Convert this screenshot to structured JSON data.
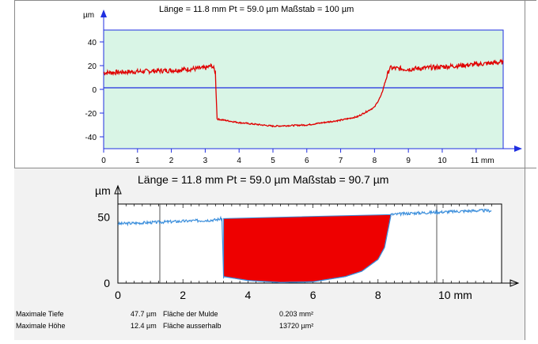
{
  "top_chart": {
    "header": "Länge = 11.8 mm  Pt = 59.0 µm  Maßstab = 100 µm",
    "y_unit": "µm",
    "x_unit": "mm",
    "x_ticks": [
      "0",
      "1",
      "2",
      "3",
      "4",
      "5",
      "6",
      "7",
      "8",
      "9",
      "10",
      "11 mm"
    ],
    "y_ticks": [
      "40",
      "20",
      "0",
      "-20",
      "-40"
    ],
    "colors": {
      "background": "#d9f5e6",
      "profile": "#e00000",
      "axis": "#1f2fe0",
      "frame": "#1f2fe0"
    }
  },
  "bottom_chart": {
    "header": "Länge = 11.8 mm  Pt = 59.0 µm  Maßstab = 90.7 µm",
    "y_unit": "µm",
    "x_ticks": [
      "0",
      "2",
      "4",
      "6",
      "8",
      "10 mm"
    ],
    "y_ticks": [
      "50",
      "0"
    ],
    "colors": {
      "profile": "#3c8fdc",
      "fill": "#ee0000"
    }
  },
  "chart_data": [
    {
      "type": "line",
      "title": "Länge = 11.8 mm  Pt = 59.0 µm  Maßstab = 100 µm",
      "xlabel": "mm",
      "ylabel": "µm",
      "xlim": [
        0,
        11.8
      ],
      "ylim": [
        -50,
        50
      ],
      "grid": false,
      "series": [
        {
          "x": [
            0,
            1,
            2,
            3,
            3.2,
            3.3,
            3.35,
            4,
            5,
            6,
            7,
            7.5,
            8,
            8.2,
            8.35,
            8.45,
            9,
            10,
            11,
            11.8
          ],
          "y": [
            14,
            15,
            16,
            18,
            20,
            15,
            -25,
            -28,
            -31,
            -30,
            -26,
            -23,
            -15,
            -5,
            10,
            18,
            17,
            19,
            21,
            23
          ]
        }
      ]
    },
    {
      "type": "area",
      "title": "Länge = 11.8 mm  Pt = 59.0 µm  Maßstab = 90.7 µm",
      "xlabel": "mm",
      "ylabel": "µm",
      "xlim": [
        0,
        11.8
      ],
      "ylim": [
        0,
        60
      ],
      "grid": false,
      "series": [
        {
          "x": [
            0,
            1,
            2,
            3,
            3.2,
            3.25,
            4,
            5,
            6,
            7,
            7.5,
            8,
            8.2,
            8.4,
            9,
            10,
            11,
            11.5
          ],
          "y": [
            45,
            46,
            47,
            48,
            49,
            5,
            2,
            0.5,
            1,
            5,
            9,
            18,
            27,
            52,
            53,
            54,
            55,
            55
          ]
        }
      ],
      "filled_region": {
        "x_from": 3.25,
        "x_to": 8.4,
        "top": [
          49,
          52
        ]
      }
    }
  ],
  "stats": {
    "rows": [
      {
        "label": "Maximale Tiefe",
        "value": "47.7 µm",
        "label2": "Fläche der Mulde",
        "value2": "0.203 mm²"
      },
      {
        "label": "Maximale Höhe",
        "value": "12.4 µm",
        "label2": "Fläche ausserhalb",
        "value2": "13720 µm²"
      }
    ]
  }
}
